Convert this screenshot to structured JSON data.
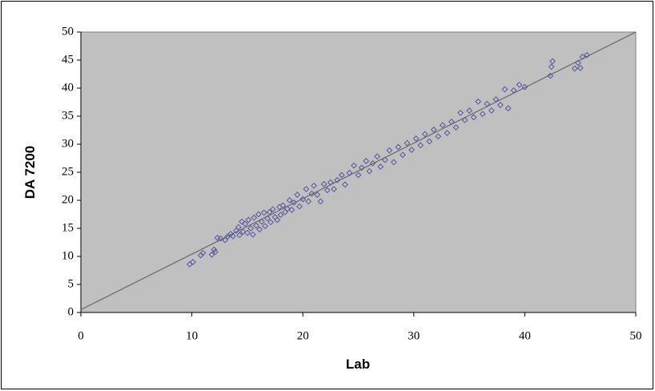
{
  "chart_data": {
    "type": "scatter",
    "x_label": "Lab",
    "y_label": "DA 7200",
    "xlim": [
      0,
      50
    ],
    "ylim": [
      0,
      50
    ],
    "xticks": [
      0,
      10,
      20,
      30,
      40,
      50
    ],
    "yticks": [
      0,
      5,
      10,
      15,
      20,
      25,
      30,
      35,
      40,
      45,
      50
    ],
    "background": "#c0c0c0",
    "color": "#5f5fa3",
    "reference_line": {
      "x": [
        0,
        50
      ],
      "y": [
        0.5,
        50
      ],
      "color": "#707070"
    },
    "x": [
      9.8,
      10.1,
      10.8,
      11.0,
      11.8,
      12.0,
      12.1,
      12.3,
      12.6,
      13.0,
      13.2,
      13.5,
      13.7,
      14.0,
      14.2,
      14.3,
      14.5,
      14.6,
      14.8,
      15.0,
      15.1,
      15.3,
      15.5,
      15.6,
      15.8,
      16.0,
      16.1,
      16.3,
      16.5,
      16.6,
      16.8,
      17.0,
      17.1,
      17.3,
      17.5,
      17.7,
      17.9,
      18.0,
      18.2,
      18.4,
      18.6,
      18.8,
      19.0,
      19.2,
      19.5,
      19.7,
      20.0,
      20.3,
      20.5,
      20.8,
      21.0,
      21.3,
      21.6,
      21.9,
      22.2,
      22.5,
      22.8,
      23.1,
      23.5,
      23.8,
      24.2,
      24.6,
      25.0,
      25.3,
      25.7,
      26.0,
      26.3,
      26.7,
      27.0,
      27.4,
      27.8,
      28.2,
      28.6,
      29.0,
      29.4,
      29.8,
      30.2,
      30.6,
      31.0,
      31.4,
      31.8,
      32.2,
      32.6,
      33.0,
      33.4,
      33.8,
      34.2,
      34.6,
      35.0,
      35.4,
      35.8,
      36.2,
      36.6,
      37.0,
      37.4,
      37.8,
      38.2,
      38.5,
      39.0,
      39.5,
      40.0,
      42.3,
      42.5,
      42.4,
      44.5,
      44.8,
      45.0,
      45.2,
      45.6
    ],
    "y": [
      8.6,
      9.0,
      10.2,
      10.6,
      10.3,
      11.2,
      10.8,
      13.3,
      13.2,
      12.9,
      13.5,
      14.0,
      13.6,
      14.6,
      15.2,
      13.8,
      16.2,
      14.4,
      15.8,
      14.2,
      16.5,
      15.0,
      13.9,
      16.9,
      15.5,
      17.5,
      14.8,
      16.2,
      17.8,
      15.4,
      16.8,
      17.9,
      16.1,
      18.4,
      17.0,
      16.5,
      18.8,
      17.4,
      19.1,
      17.9,
      18.5,
      20.0,
      18.3,
      19.6,
      21.0,
      18.9,
      20.2,
      22.0,
      19.8,
      21.2,
      22.6,
      21.0,
      19.8,
      22.9,
      21.8,
      23.2,
      22.0,
      23.6,
      24.5,
      22.8,
      24.9,
      26.2,
      24.5,
      25.8,
      27.0,
      25.2,
      26.6,
      27.8,
      26.0,
      27.2,
      28.9,
      26.8,
      29.5,
      28.1,
      30.2,
      29.0,
      31.0,
      29.8,
      31.8,
      30.5,
      32.6,
      31.4,
      33.4,
      32.0,
      34.0,
      33.0,
      35.6,
      34.3,
      36.0,
      34.8,
      37.6,
      35.4,
      37.2,
      36.0,
      38.0,
      37.0,
      39.8,
      36.4,
      39.6,
      40.6,
      40.2,
      42.2,
      44.8,
      43.8,
      43.5,
      44.5,
      43.6,
      45.6,
      45.9
    ]
  }
}
